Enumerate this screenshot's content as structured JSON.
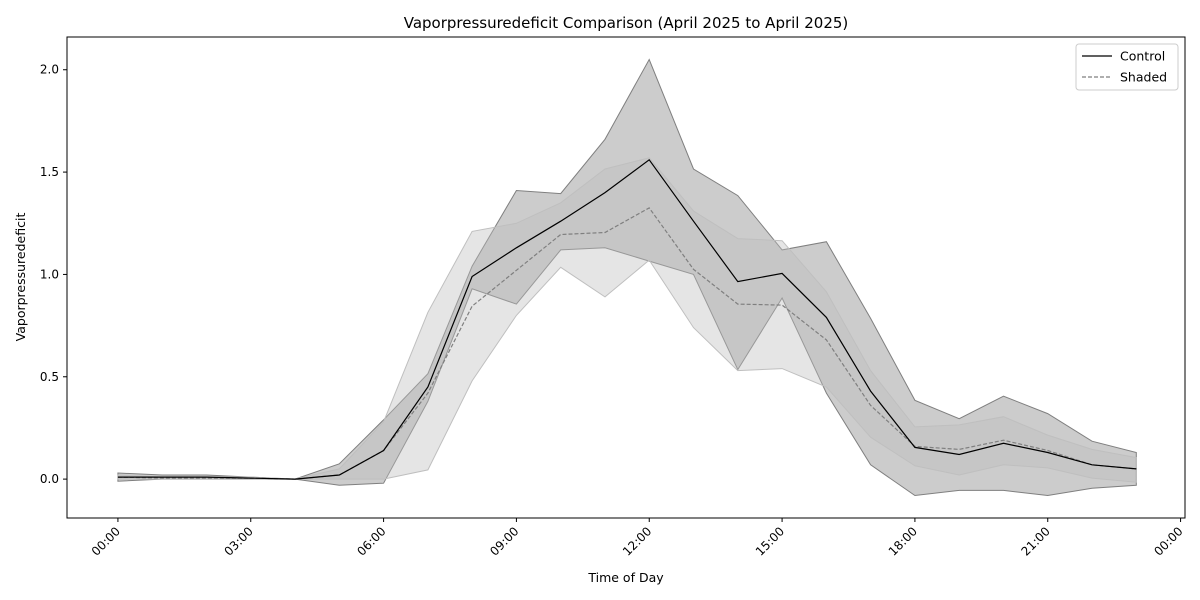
{
  "chart_data": {
    "type": "line",
    "title": "Vaporpressuredeficit Comparison (April 2025 to April 2025)",
    "xlabel": "Time of Day",
    "ylabel": "Vaporpressuredeficit",
    "x": [
      0,
      1,
      2,
      3,
      4,
      5,
      6,
      7,
      8,
      9,
      10,
      11,
      12,
      13,
      14,
      15,
      16,
      17,
      18,
      19,
      20,
      21,
      22,
      23
    ],
    "x_ticks": [
      "00:00",
      "03:00",
      "06:00",
      "09:00",
      "12:00",
      "15:00",
      "18:00",
      "21:00",
      "00:00"
    ],
    "x_tick_hours": [
      0,
      3,
      6,
      9,
      12,
      15,
      18,
      21,
      24
    ],
    "xlim": [
      -1.15,
      24.1
    ],
    "ylim": [
      -0.19,
      2.16
    ],
    "y_ticks": [
      0.0,
      0.5,
      1.0,
      1.5,
      2.0
    ],
    "y_tick_labels": [
      "0.0",
      "0.5",
      "1.0",
      "1.5",
      "2.0"
    ],
    "grid": false,
    "legend_position": "top-right",
    "series": [
      {
        "name": "Control",
        "style": "solid",
        "color": "#000000",
        "band_color": "#7f7f7f",
        "values": [
          0.01,
          0.01,
          0.01,
          0.005,
          0.0,
          0.02,
          0.14,
          0.45,
          0.99,
          1.13,
          1.26,
          1.4,
          1.56,
          1.26,
          0.965,
          1.005,
          0.79,
          0.43,
          0.155,
          0.12,
          0.175,
          0.13,
          0.07,
          0.05
        ],
        "lower": [
          -0.01,
          0.0,
          0.0,
          0.0,
          0.0,
          -0.03,
          -0.02,
          0.38,
          0.93,
          0.855,
          1.12,
          1.13,
          1.065,
          1.0,
          0.535,
          0.885,
          0.42,
          0.07,
          -0.08,
          -0.055,
          -0.055,
          -0.08,
          -0.045,
          -0.03
        ],
        "upper": [
          0.03,
          0.02,
          0.02,
          0.01,
          0.0,
          0.075,
          0.29,
          0.515,
          1.04,
          1.41,
          1.395,
          1.66,
          2.05,
          1.515,
          1.385,
          1.12,
          1.16,
          0.785,
          0.385,
          0.295,
          0.405,
          0.32,
          0.185,
          0.13
        ]
      },
      {
        "name": "Shaded",
        "style": "dashed",
        "color": "#7f7f7f",
        "band_color": "#bfbfbf",
        "values": [
          0.01,
          0.005,
          0.005,
          0.005,
          0.0,
          0.02,
          0.14,
          0.42,
          0.845,
          1.02,
          1.195,
          1.205,
          1.325,
          1.025,
          0.855,
          0.85,
          0.68,
          0.36,
          0.16,
          0.145,
          0.19,
          0.14,
          0.07,
          0.05
        ],
        "lower": [
          0.0,
          0.0,
          0.0,
          0.0,
          0.0,
          0.0,
          0.0,
          0.045,
          0.48,
          0.8,
          1.035,
          0.89,
          1.07,
          0.74,
          0.53,
          0.54,
          0.45,
          0.205,
          0.065,
          0.02,
          0.07,
          0.055,
          0.005,
          -0.015
        ],
        "upper": [
          0.02,
          0.01,
          0.01,
          0.01,
          0.0,
          0.05,
          0.28,
          0.815,
          1.21,
          1.25,
          1.35,
          1.515,
          1.57,
          1.31,
          1.175,
          1.165,
          0.915,
          0.53,
          0.255,
          0.265,
          0.305,
          0.215,
          0.145,
          0.105
        ]
      }
    ]
  }
}
